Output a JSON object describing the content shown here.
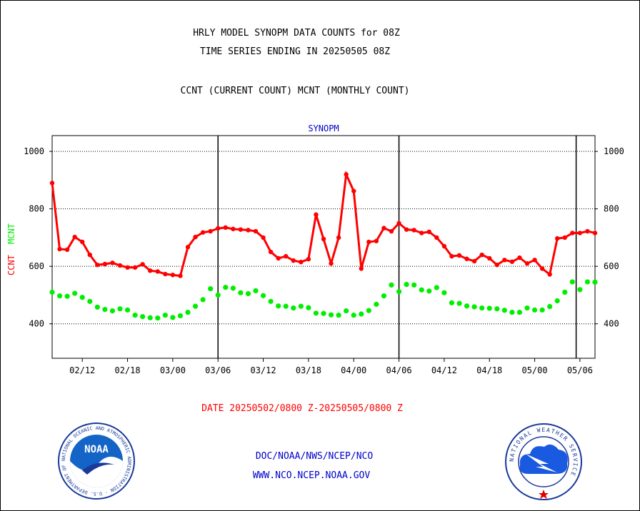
{
  "header": {
    "title_line1": "HRLY MODEL SYNOPM DATA COUNTS for 08Z",
    "title_line2": "TIME SERIES ENDING IN 20250505 08Z",
    "subtitle": "CCNT (CURRENT COUNT) MCNT (MONTHLY COUNT)"
  },
  "footer": {
    "date_range": "DATE 20250502/0800 Z-20250505/0800 Z",
    "org_line": "DOC/NOAA/NWS/NCEP/NCO",
    "url_line": "WWW.NCO.NCEP.NOAA.GOV"
  },
  "logos": {
    "noaa_text": "NOAA",
    "noaa_ring_text": "NATIONAL OCEANIC AND ATMOSPHERIC ADMINISTRATION · U.S. DEPARTMENT OF COMMERCE ·",
    "nws_ring_text": "NATIONAL WEATHER SERVICE"
  },
  "colors": {
    "ccnt": "#ff0000",
    "mcnt": "#00ee00",
    "title_blue": "#0000cc",
    "text": "#000000"
  },
  "chart_data": {
    "type": "line",
    "title": "SYNOPM",
    "ylabel_left": [
      "CCNT",
      "MCNT"
    ],
    "ylim": [
      280,
      1055
    ],
    "yticks": [
      400,
      600,
      800,
      1000
    ],
    "grid": true,
    "x_tick_labels": [
      "02/12",
      "02/18",
      "03/00",
      "03/06",
      "03/12",
      "03/18",
      "04/00",
      "04/06",
      "04/12",
      "04/18",
      "05/00",
      "05/06"
    ],
    "x_tick_indices": [
      4,
      10,
      16,
      22,
      28,
      34,
      40,
      46,
      52,
      58,
      64,
      70
    ],
    "day_boundaries": [
      22,
      46,
      69.5
    ],
    "series": [
      {
        "name": "CCNT",
        "values": [
          890,
          660,
          658,
          702,
          685,
          640,
          605,
          608,
          612,
          603,
          596,
          596,
          607,
          585,
          582,
          573,
          570,
          567,
          667,
          702,
          718,
          722,
          732,
          735,
          730,
          728,
          726,
          722,
          700,
          650,
          628,
          635,
          620,
          615,
          625,
          780,
          695,
          610,
          700,
          920,
          862,
          592,
          685,
          688,
          733,
          722,
          750,
          728,
          726,
          716,
          720,
          700,
          670,
          635,
          638,
          626,
          618,
          640,
          628,
          605,
          622,
          616,
          630,
          610,
          622,
          592,
          572,
          697,
          700,
          716,
          716,
          722,
          716
        ]
      },
      {
        "name": "MCNT",
        "values": [
          510,
          497,
          496,
          506,
          492,
          478,
          458,
          450,
          445,
          452,
          448,
          430,
          425,
          421,
          420,
          430,
          422,
          428,
          440,
          461,
          484,
          522,
          500,
          527,
          524,
          508,
          505,
          515,
          498,
          478,
          462,
          461,
          455,
          461,
          456,
          437,
          436,
          431,
          430,
          445,
          430,
          434,
          446,
          468,
          497,
          535,
          512,
          537,
          535,
          518,
          514,
          526,
          508,
          473,
          471,
          462,
          459,
          455,
          454,
          452,
          447,
          440,
          440,
          455,
          448,
          448,
          460,
          480,
          510,
          546,
          519,
          546,
          545
        ]
      }
    ]
  }
}
